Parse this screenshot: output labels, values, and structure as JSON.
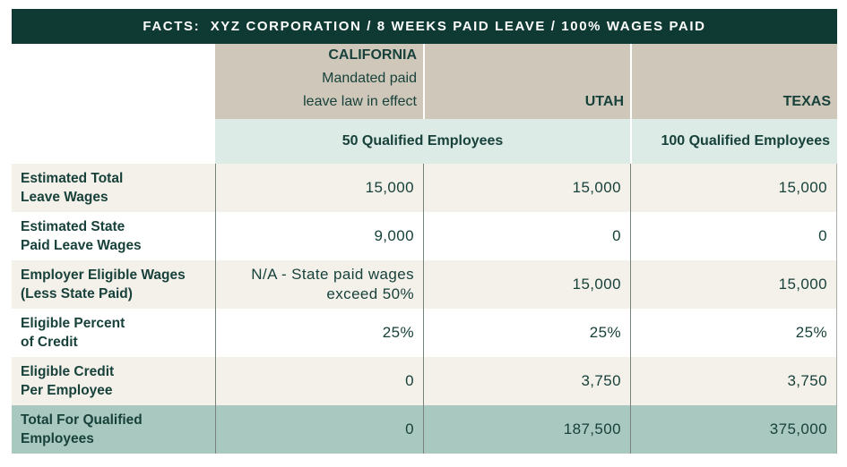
{
  "banner": {
    "title": "FACTS:  XYZ CORPORATION / 8 WEEKS PAID LEAVE / 100% WAGES PAID"
  },
  "columns": {
    "row_label_header": "",
    "california": {
      "name": "CALIFORNIA",
      "note_line1": "Mandated paid",
      "note_line2": "leave law in effect"
    },
    "utah": {
      "name": "UTAH"
    },
    "texas": {
      "name": "TEXAS"
    }
  },
  "employee_bands": {
    "california_utah": "50 Qualified Employees",
    "texas": "100 Qualified Employees"
  },
  "rows": [
    {
      "label_line1": "Estimated Total",
      "label_line2": "Leave Wages",
      "california": "15,000",
      "utah": "15,000",
      "texas": "15,000"
    },
    {
      "label_line1": "Estimated State",
      "label_line2": "Paid Leave Wages",
      "california": "9,000",
      "utah": "0",
      "texas": "0"
    },
    {
      "label_line1": "Employer Eligible Wages",
      "label_line2": "(Less State Paid)",
      "california": "N/A - State paid wages\nexceed 50%",
      "utah": "15,000",
      "texas": "15,000"
    },
    {
      "label_line1": "Eligible Percent",
      "label_line2": "of Credit",
      "california": "25%",
      "utah": "25%",
      "texas": "25%"
    },
    {
      "label_line1": "Eligible Credit",
      "label_line2": "Per Employee",
      "california": "0",
      "utah": "3,750",
      "texas": "3,750"
    },
    {
      "label_line1": "Total For Qualified",
      "label_line2": "Employees",
      "california": "0",
      "utah": "187,500",
      "texas": "375,000"
    }
  ],
  "chart_data": {
    "type": "table",
    "title": "FACTS: XYZ CORPORATION / 8 WEEKS PAID LEAVE / 100% WAGES PAID",
    "column_headers": [
      "",
      "CALIFORNIA (Mandated paid leave law in effect) — 50 Qualified Employees",
      "UTAH — 50 Qualified Employees",
      "TEXAS — 100 Qualified Employees"
    ],
    "rows": [
      {
        "label": "Estimated Total Leave Wages",
        "california": 15000,
        "utah": 15000,
        "texas": 15000
      },
      {
        "label": "Estimated State Paid Leave Wages",
        "california": 9000,
        "utah": 0,
        "texas": 0
      },
      {
        "label": "Employer Eligible Wages (Less State Paid)",
        "california": "N/A - State paid wages exceed 50%",
        "utah": 15000,
        "texas": 15000
      },
      {
        "label": "Eligible Percent of Credit",
        "california": "25%",
        "utah": "25%",
        "texas": "25%"
      },
      {
        "label": "Eligible Credit Per Employee",
        "california": 0,
        "utah": 3750,
        "texas": 3750
      },
      {
        "label": "Total For Qualified Employees",
        "california": 0,
        "utah": 187500,
        "texas": 375000
      }
    ]
  },
  "colors": {
    "banner_bg": "#0e3a33",
    "header_tan": "#cfc8ba",
    "band_green": "#dcebe5",
    "row_cream": "#f4f1ea",
    "row_white": "#ffffff",
    "total_sage": "#a9c9c0",
    "text_green": "#17413a",
    "divider_gray": "#79837d"
  }
}
